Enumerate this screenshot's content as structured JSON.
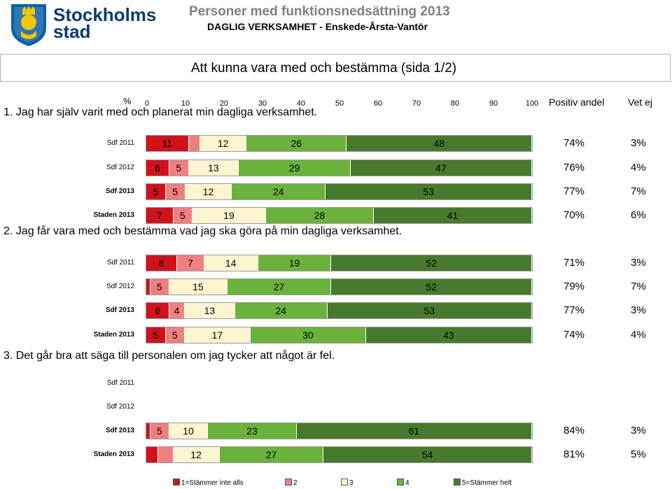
{
  "header": {
    "logo_line1": "Stockholms",
    "logo_line2": "stad",
    "title": "Personer med funktionsnedsättning 2013",
    "subtitle": "DAGLIG VERKSAMHET - Enskede-Årsta-Vantör",
    "page_title": "Att kunna vara med och bestämma (sida 1/2)"
  },
  "axis": {
    "unit": "%",
    "ticks": [
      "0",
      "10",
      "20",
      "30",
      "40",
      "50",
      "60",
      "70",
      "80",
      "90",
      "100"
    ],
    "positive_header": "Positiv andel",
    "dont_know_header": "Vet ej"
  },
  "colors": [
    "#d0121b",
    "#f08080",
    "#fdf5d0",
    "#6ab23c",
    "#487a2d"
  ],
  "chart_data": {
    "type": "bar",
    "stacked": true,
    "orientation": "horizontal",
    "xlim": [
      0,
      100
    ],
    "categories": [
      "1=Stämmer inte alls",
      "2",
      "3",
      "4",
      "5=Stämmer helt"
    ],
    "questions": [
      {
        "text": "1. Jag har själv varit med och planerat min dagliga verksamhet.",
        "rows": [
          {
            "label": "Sdf 2011",
            "bold": false,
            "values": [
              11,
              3,
              12,
              26,
              48
            ],
            "labels": [
              "11",
              "",
              "12",
              "26",
              "48"
            ],
            "positive": "74%",
            "dont_know": "3%"
          },
          {
            "label": "Sdf 2012",
            "bold": false,
            "values": [
              6,
              5,
              13,
              29,
              47
            ],
            "labels": [
              "6",
              "5",
              "13",
              "29",
              "47"
            ],
            "positive": "76%",
            "dont_know": "4%"
          },
          {
            "label": "Sdf 2013",
            "bold": true,
            "values": [
              5,
              5,
              12,
              24,
              53
            ],
            "labels": [
              "5",
              "5",
              "12",
              "24",
              "53"
            ],
            "positive": "77%",
            "dont_know": "7%"
          },
          {
            "label": "Staden 2013",
            "bold": true,
            "values": [
              7,
              5,
              19,
              28,
              41
            ],
            "labels": [
              "7",
              "5",
              "19",
              "28",
              "41"
            ],
            "positive": "70%",
            "dont_know": "6%"
          }
        ]
      },
      {
        "text": "2. Jag får vara med och bestämma vad jag ska göra på min dagliga verksamhet.",
        "rows": [
          {
            "label": "Sdf 2011",
            "bold": false,
            "values": [
              8,
              7,
              14,
              19,
              52
            ],
            "labels": [
              "8",
              "7",
              "14",
              "19",
              "52"
            ],
            "positive": "71%",
            "dont_know": "3%"
          },
          {
            "label": "Sdf 2012",
            "bold": false,
            "values": [
              1,
              5,
              15,
              27,
              52
            ],
            "labels": [
              "",
              "5",
              "15",
              "27",
              "52"
            ],
            "positive": "79%",
            "dont_know": "7%"
          },
          {
            "label": "Sdf 2013",
            "bold": true,
            "values": [
              6,
              4,
              13,
              24,
              53
            ],
            "labels": [
              "6",
              "4",
              "13",
              "24",
              "53"
            ],
            "positive": "77%",
            "dont_know": "3%"
          },
          {
            "label": "Staden 2013",
            "bold": true,
            "values": [
              5,
              5,
              17,
              30,
              43
            ],
            "labels": [
              "5",
              "5",
              "17",
              "30",
              "43"
            ],
            "positive": "74%",
            "dont_know": "4%"
          }
        ]
      },
      {
        "text": "3. Det går bra att säga till personalen om jag tycker att något är fel.",
        "rows": [
          {
            "label": "Sdf 2011",
            "bold": false,
            "values": [],
            "labels": [],
            "positive": "",
            "dont_know": ""
          },
          {
            "label": "Sdf 2012",
            "bold": false,
            "values": [],
            "labels": [],
            "positive": "",
            "dont_know": ""
          },
          {
            "label": "Sdf 2013",
            "bold": true,
            "values": [
              1,
              5,
              10,
              23,
              61
            ],
            "labels": [
              "",
              "5",
              "10",
              "23",
              "61"
            ],
            "positive": "84%",
            "dont_know": "3%"
          },
          {
            "label": "Staden 2013",
            "bold": true,
            "values": [
              3,
              4,
              12,
              27,
              54
            ],
            "labels": [
              "",
              "",
              "12",
              "27",
              "54"
            ],
            "positive": "81%",
            "dont_know": "5%"
          }
        ]
      }
    ]
  }
}
